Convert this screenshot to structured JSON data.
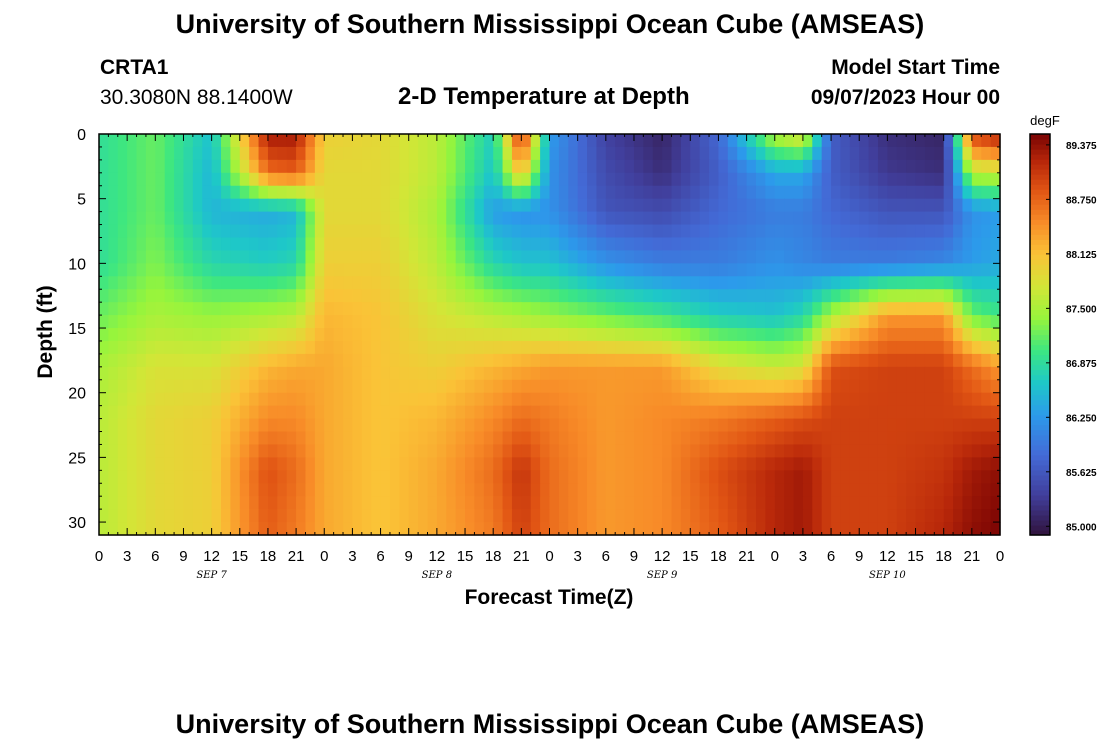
{
  "header": {
    "title": "University of Southern Mississippi Ocean Cube (AMSEAS)",
    "station": "CRTA1",
    "coords": "30.3080N  88.1400W",
    "plot_title": "2-D Temperature at Depth",
    "model_label": "Model Start Time",
    "model_time": "09/07/2023 Hour 00",
    "bottom_title": "University of Southern Mississippi Ocean Cube (AMSEAS)"
  },
  "chart_data": {
    "type": "heatmap",
    "title": "2-D Temperature at Depth",
    "xlabel": "Forecast Time(Z)",
    "ylabel": "Depth (ft)",
    "x_ticks": [
      "0",
      "3",
      "6",
      "9",
      "12",
      "15",
      "18",
      "21",
      "0",
      "3",
      "6",
      "9",
      "12",
      "15",
      "18",
      "21",
      "0",
      "3",
      "6",
      "9",
      "12",
      "15",
      "18",
      "21",
      "0",
      "3",
      "6",
      "9",
      "12",
      "15",
      "18",
      "21",
      "0"
    ],
    "x_day_labels": [
      "SEP 7",
      "SEP 8",
      "SEP 9",
      "SEP 10"
    ],
    "xlim_hours": [
      0,
      96
    ],
    "y_ticks": [
      0,
      5,
      10,
      15,
      20,
      25,
      30
    ],
    "ylim": [
      0,
      31
    ],
    "colorbar": {
      "unit": "degF",
      "ticks": [
        "89.375",
        "88.750",
        "88.125",
        "87.500",
        "86.875",
        "86.250",
        "85.625",
        "85.000"
      ],
      "range": [
        84.9,
        89.5
      ]
    },
    "approx_grid": {
      "depth_ft": [
        0,
        3,
        6,
        10,
        14,
        18,
        22,
        26,
        31
      ],
      "hours": [
        0,
        6,
        12,
        18,
        21,
        24,
        30,
        36,
        42,
        45,
        48,
        54,
        60,
        66,
        72,
        75,
        78,
        84,
        90,
        93,
        96
      ],
      "temperature_degF": [
        [
          86.9,
          87.2,
          86.6,
          89.3,
          89.3,
          88.0,
          87.9,
          87.6,
          86.7,
          89.2,
          86.3,
          85.4,
          85.1,
          85.8,
          87.6,
          87.9,
          85.7,
          85.2,
          85.1,
          89.0,
          89.3
        ],
        [
          86.9,
          87.2,
          86.5,
          88.7,
          88.8,
          87.9,
          87.9,
          87.6,
          86.6,
          88.2,
          86.2,
          85.5,
          85.2,
          85.7,
          86.4,
          86.4,
          85.7,
          85.3,
          85.2,
          87.6,
          87.7
        ],
        [
          86.9,
          87.2,
          86.5,
          86.4,
          86.5,
          87.9,
          87.9,
          87.5,
          86.3,
          86.2,
          86.2,
          85.6,
          85.5,
          85.8,
          86.0,
          86.0,
          85.8,
          85.6,
          85.6,
          86.2,
          86.3
        ],
        [
          86.9,
          87.3,
          86.8,
          86.7,
          86.8,
          88.0,
          88.0,
          87.6,
          86.8,
          86.6,
          86.6,
          86.2,
          86.0,
          86.0,
          86.2,
          86.1,
          86.0,
          86.0,
          86.1,
          86.3,
          86.4
        ],
        [
          87.2,
          87.5,
          87.4,
          87.5,
          87.6,
          88.2,
          88.1,
          87.8,
          87.6,
          87.5,
          87.4,
          87.2,
          87.0,
          86.7,
          86.6,
          86.8,
          87.5,
          88.4,
          88.4,
          87.2,
          87.0
        ],
        [
          87.5,
          87.8,
          87.8,
          88.2,
          88.3,
          88.3,
          88.1,
          88.0,
          88.2,
          88.3,
          88.4,
          88.4,
          88.4,
          87.9,
          87.7,
          87.8,
          88.9,
          89.0,
          89.0,
          88.7,
          88.4
        ],
        [
          87.6,
          87.9,
          88.0,
          88.5,
          88.5,
          88.3,
          88.1,
          88.2,
          88.5,
          88.7,
          88.6,
          88.4,
          88.5,
          88.6,
          88.8,
          88.9,
          89.0,
          89.0,
          89.0,
          89.0,
          89.0
        ],
        [
          87.6,
          87.9,
          88.0,
          88.9,
          88.7,
          88.3,
          88.1,
          88.3,
          88.7,
          89.1,
          88.7,
          88.4,
          88.5,
          88.9,
          89.2,
          89.3,
          89.0,
          89.0,
          89.1,
          89.3,
          89.4
        ],
        [
          87.6,
          87.9,
          88.0,
          88.8,
          88.6,
          88.3,
          88.1,
          88.3,
          88.6,
          89.0,
          88.7,
          88.4,
          88.5,
          88.8,
          89.2,
          89.3,
          89.0,
          89.0,
          89.2,
          89.4,
          89.5
        ]
      ]
    }
  }
}
